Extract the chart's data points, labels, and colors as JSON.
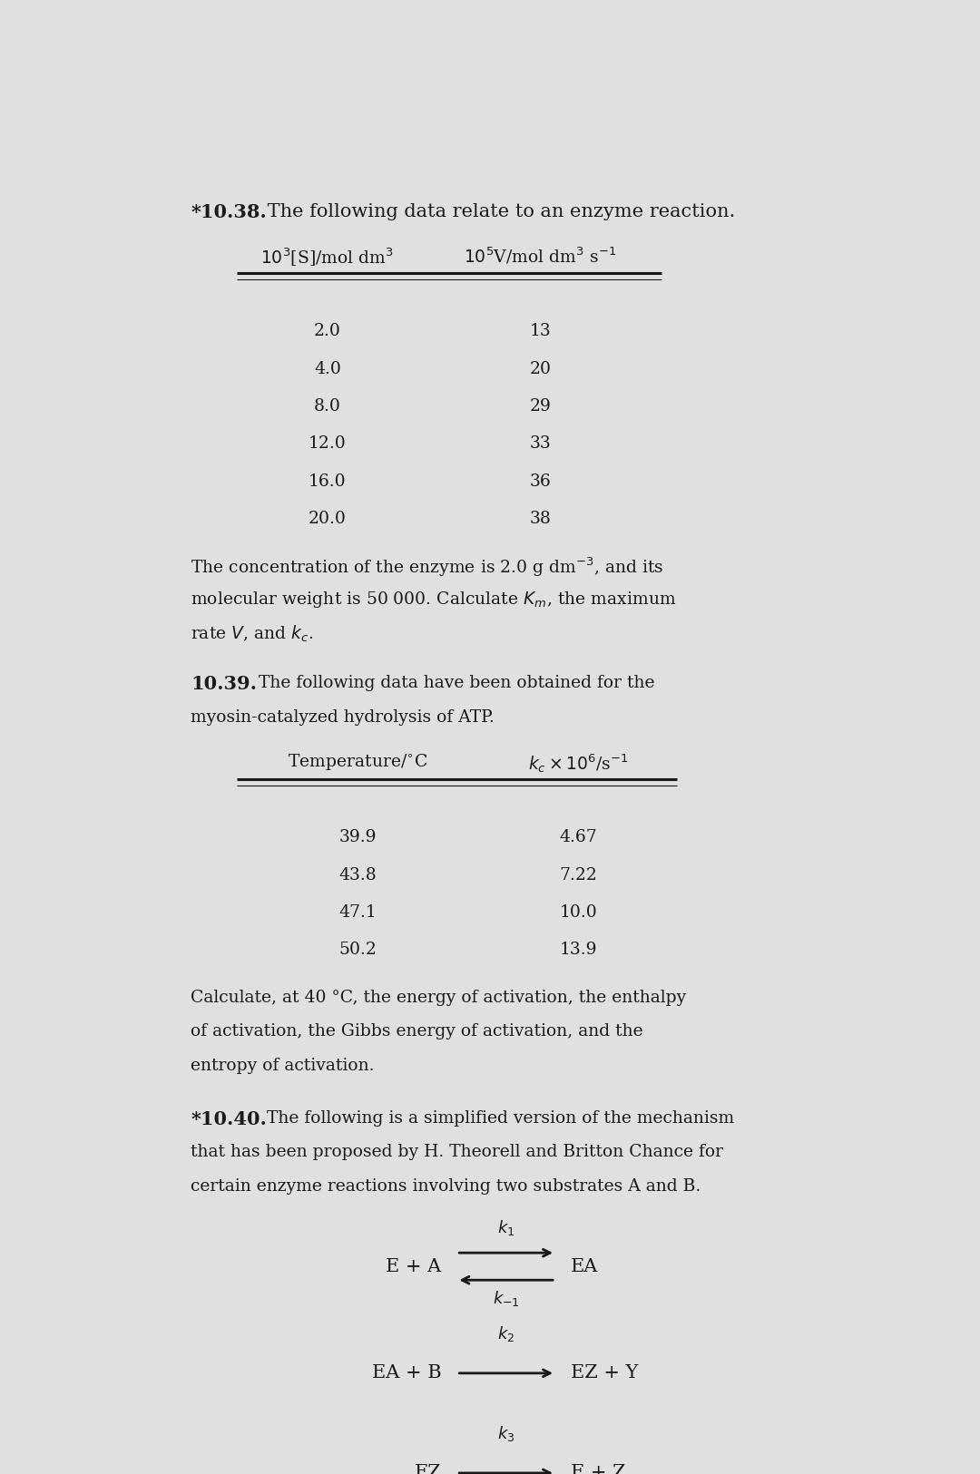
{
  "bg_color": "#e0e0e0",
  "text_color": "#1a1a1a",
  "table1_col1": [
    "2.0",
    "4.0",
    "8.0",
    "12.0",
    "16.0",
    "20.0"
  ],
  "table1_col2": [
    "13",
    "20",
    "29",
    "33",
    "36",
    "38"
  ],
  "table2_col1": [
    "39.9",
    "43.8",
    "47.1",
    "50.2"
  ],
  "table2_col2": [
    "4.67",
    "7.22",
    "10.0",
    "13.9"
  ],
  "font_size_title": 15,
  "font_size_body": 13.5,
  "font_size_table": 13.5,
  "font_size_eq": 15
}
